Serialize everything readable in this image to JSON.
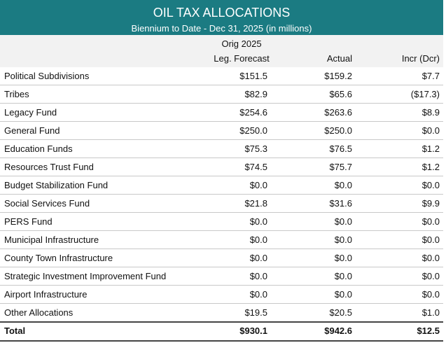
{
  "header": {
    "title": "OIL TAX ALLOCATIONS",
    "subtitle": "Biennium to Date - Dec 31, 2025 (in millions)"
  },
  "table": {
    "columns": [
      [
        "Orig 2025",
        "Leg. Forecast"
      ],
      [
        "Actual"
      ],
      [
        "Incr (Dcr)"
      ]
    ],
    "rows": [
      [
        "Political Subdivisions",
        "$151.5",
        "$159.2",
        "$7.7"
      ],
      [
        "Tribes",
        "$82.9",
        "$65.6",
        "($17.3)"
      ],
      [
        "Legacy Fund",
        "$254.6",
        "$263.6",
        "$8.9"
      ],
      [
        "General Fund",
        "$250.0",
        "$250.0",
        "$0.0"
      ],
      [
        "Education Funds",
        "$75.3",
        "$76.5",
        "$1.2"
      ],
      [
        "Resources Trust Fund",
        "$74.5",
        "$75.7",
        "$1.2"
      ],
      [
        "Budget Stabilization Fund",
        "$0.0",
        "$0.0",
        "$0.0"
      ],
      [
        "Social Services Fund",
        "$21.8",
        "$31.6",
        "$9.9"
      ],
      [
        "PERS Fund",
        "$0.0",
        "$0.0",
        "$0.0"
      ],
      [
        "Municipal Infrastructure",
        "$0.0",
        "$0.0",
        "$0.0"
      ],
      [
        "County Town Infrastructure",
        "$0.0",
        "$0.0",
        "$0.0"
      ],
      [
        "Strategic Investment Improvement Fund",
        "$0.0",
        "$0.0",
        "$0.0"
      ],
      [
        "Airport Infrastructure",
        "$0.0",
        "$0.0",
        "$0.0"
      ],
      [
        "Other Allocations",
        "$19.5",
        "$20.5",
        "$1.0"
      ]
    ],
    "total": [
      "Total",
      "$930.1",
      "$942.6",
      "$12.5"
    ]
  }
}
